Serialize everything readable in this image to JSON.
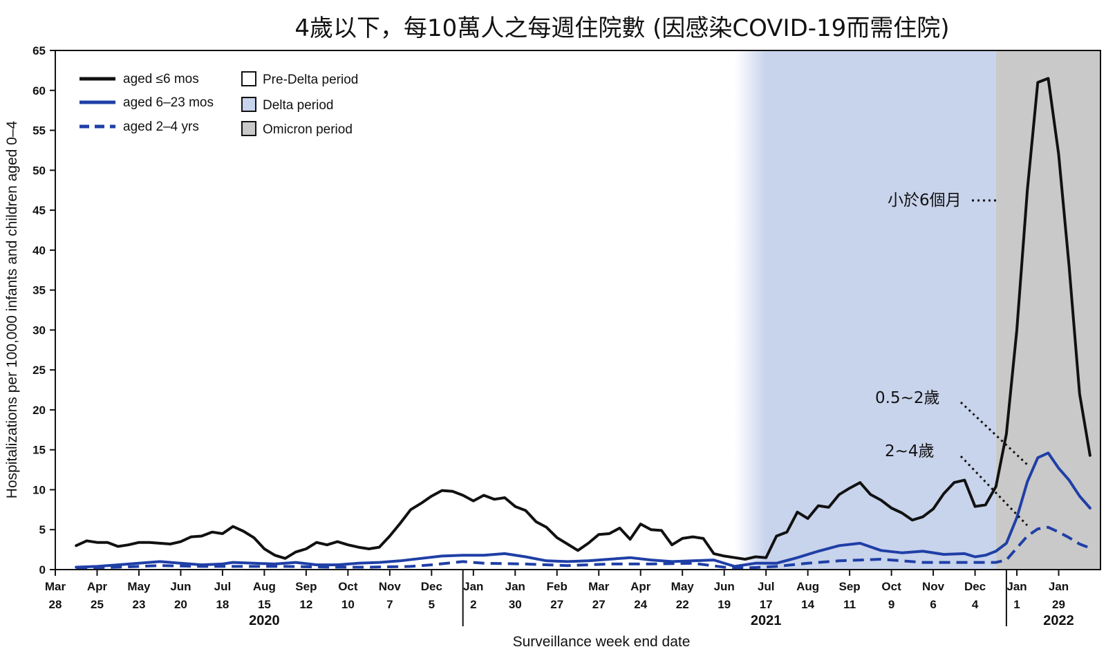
{
  "chart_data": {
    "type": "line",
    "title": "4歲以下，每10萬人之每週住院數 (因感染COVID-19而需住院)",
    "xlabel": "Surveillance week end date",
    "ylabel": "Hospitalizations per 100,000 infants and children aged 0–4",
    "ylim": [
      0,
      65
    ],
    "yticks": [
      0,
      5,
      10,
      15,
      20,
      25,
      30,
      35,
      40,
      45,
      50,
      55,
      60,
      65
    ],
    "x_start": "2020-03-28",
    "x_end": "2022-02-26",
    "xticks": [
      {
        "date": "2020-03-28",
        "month": "Mar",
        "day": "28"
      },
      {
        "date": "2020-04-25",
        "month": "Apr",
        "day": "25"
      },
      {
        "date": "2020-05-23",
        "month": "May",
        "day": "23"
      },
      {
        "date": "2020-06-20",
        "month": "Jun",
        "day": "20"
      },
      {
        "date": "2020-07-18",
        "month": "Jul",
        "day": "18"
      },
      {
        "date": "2020-08-15",
        "month": "Aug",
        "day": "15"
      },
      {
        "date": "2020-09-12",
        "month": "Sep",
        "day": "12"
      },
      {
        "date": "2020-10-10",
        "month": "Oct",
        "day": "10"
      },
      {
        "date": "2020-11-07",
        "month": "Nov",
        "day": "7"
      },
      {
        "date": "2020-12-05",
        "month": "Dec",
        "day": "5"
      },
      {
        "date": "2021-01-02",
        "month": "Jan",
        "day": "2"
      },
      {
        "date": "2021-01-30",
        "month": "Jan",
        "day": "30"
      },
      {
        "date": "2021-02-27",
        "month": "Feb",
        "day": "27"
      },
      {
        "date": "2021-03-27",
        "month": "Mar",
        "day": "27"
      },
      {
        "date": "2021-04-24",
        "month": "Apr",
        "day": "24"
      },
      {
        "date": "2021-05-22",
        "month": "May",
        "day": "22"
      },
      {
        "date": "2021-06-19",
        "month": "Jun",
        "day": "19"
      },
      {
        "date": "2021-07-17",
        "month": "Jul",
        "day": "17"
      },
      {
        "date": "2021-08-14",
        "month": "Aug",
        "day": "14"
      },
      {
        "date": "2021-09-11",
        "month": "Sep",
        "day": "11"
      },
      {
        "date": "2021-10-09",
        "month": "Oct",
        "day": "9"
      },
      {
        "date": "2021-11-06",
        "month": "Nov",
        "day": "6"
      },
      {
        "date": "2021-12-04",
        "month": "Dec",
        "day": "4"
      },
      {
        "date": "2022-01-01",
        "month": "Jan",
        "day": "1"
      },
      {
        "date": "2022-01-29",
        "month": "Jan",
        "day": "29"
      }
    ],
    "years": [
      {
        "label": "2020",
        "at": "2020-08-15"
      },
      {
        "label": "2021",
        "at": "2021-07-17"
      },
      {
        "label": "2022",
        "at": "2022-01-29"
      }
    ],
    "year_dividers": [
      "2020-12-26",
      "2021-12-25"
    ],
    "periods": [
      {
        "name": "Pre-Delta period",
        "start": "2020-03-28",
        "end": "2021-06-26",
        "color": "#ffffff"
      },
      {
        "name": "Delta period",
        "start": "2021-06-26",
        "end": "2021-12-18",
        "color": "#c8d3ec"
      },
      {
        "name": "Omicron period",
        "start": "2021-12-18",
        "end": "2022-02-26",
        "color": "#c9c9c9"
      }
    ],
    "series": [
      {
        "name": "aged ≤6 mos",
        "color": "#111111",
        "style": "solid",
        "points": [
          [
            "2020-04-11",
            3.0
          ],
          [
            "2020-04-18",
            3.6
          ],
          [
            "2020-04-25",
            3.4
          ],
          [
            "2020-05-02",
            3.4
          ],
          [
            "2020-05-09",
            2.9
          ],
          [
            "2020-05-16",
            3.1
          ],
          [
            "2020-05-23",
            3.4
          ],
          [
            "2020-05-30",
            3.4
          ],
          [
            "2020-06-06",
            3.3
          ],
          [
            "2020-06-13",
            3.2
          ],
          [
            "2020-06-20",
            3.5
          ],
          [
            "2020-06-27",
            4.1
          ],
          [
            "2020-07-04",
            4.2
          ],
          [
            "2020-07-11",
            4.7
          ],
          [
            "2020-07-18",
            4.5
          ],
          [
            "2020-07-25",
            5.4
          ],
          [
            "2020-08-01",
            4.8
          ],
          [
            "2020-08-08",
            4.0
          ],
          [
            "2020-08-15",
            2.6
          ],
          [
            "2020-08-22",
            1.8
          ],
          [
            "2020-08-29",
            1.4
          ],
          [
            "2020-09-05",
            2.2
          ],
          [
            "2020-09-12",
            2.6
          ],
          [
            "2020-09-19",
            3.4
          ],
          [
            "2020-09-26",
            3.1
          ],
          [
            "2020-10-03",
            3.5
          ],
          [
            "2020-10-10",
            3.1
          ],
          [
            "2020-10-17",
            2.8
          ],
          [
            "2020-10-24",
            2.6
          ],
          [
            "2020-10-31",
            2.8
          ],
          [
            "2020-11-07",
            4.2
          ],
          [
            "2020-11-14",
            5.8
          ],
          [
            "2020-11-21",
            7.5
          ],
          [
            "2020-11-28",
            8.3
          ],
          [
            "2020-12-05",
            9.2
          ],
          [
            "2020-12-12",
            9.9
          ],
          [
            "2020-12-19",
            9.8
          ],
          [
            "2020-12-26",
            9.3
          ],
          [
            "2021-01-02",
            8.6
          ],
          [
            "2021-01-09",
            9.3
          ],
          [
            "2021-01-16",
            8.8
          ],
          [
            "2021-01-23",
            9.0
          ],
          [
            "2021-01-30",
            7.9
          ],
          [
            "2021-02-06",
            7.4
          ],
          [
            "2021-02-13",
            6.0
          ],
          [
            "2021-02-20",
            5.3
          ],
          [
            "2021-02-27",
            4.0
          ],
          [
            "2021-03-06",
            3.2
          ],
          [
            "2021-03-13",
            2.4
          ],
          [
            "2021-03-20",
            3.3
          ],
          [
            "2021-03-27",
            4.4
          ],
          [
            "2021-04-03",
            4.5
          ],
          [
            "2021-04-10",
            5.2
          ],
          [
            "2021-04-17",
            3.8
          ],
          [
            "2021-04-24",
            5.7
          ],
          [
            "2021-05-01",
            5.0
          ],
          [
            "2021-05-08",
            4.9
          ],
          [
            "2021-05-15",
            3.1
          ],
          [
            "2021-05-22",
            3.9
          ],
          [
            "2021-05-29",
            4.1
          ],
          [
            "2021-06-05",
            3.9
          ],
          [
            "2021-06-12",
            2.0
          ],
          [
            "2021-06-19",
            1.7
          ],
          [
            "2021-06-26",
            1.5
          ],
          [
            "2021-07-03",
            1.3
          ],
          [
            "2021-07-10",
            1.6
          ],
          [
            "2021-07-17",
            1.5
          ],
          [
            "2021-07-24",
            4.2
          ],
          [
            "2021-07-31",
            4.7
          ],
          [
            "2021-08-07",
            7.2
          ],
          [
            "2021-08-14",
            6.4
          ],
          [
            "2021-08-21",
            8.0
          ],
          [
            "2021-08-28",
            7.8
          ],
          [
            "2021-09-04",
            9.4
          ],
          [
            "2021-09-11",
            10.2
          ],
          [
            "2021-09-18",
            10.9
          ],
          [
            "2021-09-25",
            9.4
          ],
          [
            "2021-10-02",
            8.7
          ],
          [
            "2021-10-09",
            7.7
          ],
          [
            "2021-10-16",
            7.1
          ],
          [
            "2021-10-23",
            6.2
          ],
          [
            "2021-10-30",
            6.6
          ],
          [
            "2021-11-06",
            7.6
          ],
          [
            "2021-11-13",
            9.5
          ],
          [
            "2021-11-20",
            10.9
          ],
          [
            "2021-11-27",
            11.2
          ],
          [
            "2021-12-04",
            7.9
          ],
          [
            "2021-12-11",
            8.1
          ],
          [
            "2021-12-18",
            10.4
          ],
          [
            "2021-12-25",
            17.0
          ],
          [
            "2022-01-01",
            30.0
          ],
          [
            "2022-01-08",
            47.5
          ],
          [
            "2022-01-15",
            61.0
          ],
          [
            "2022-01-22",
            61.5
          ],
          [
            "2022-01-29",
            52.0
          ],
          [
            "2022-02-05",
            38.0
          ],
          [
            "2022-02-12",
            22.0
          ],
          [
            "2022-02-19",
            14.3
          ]
        ]
      },
      {
        "name": "aged 6–23 mos",
        "color": "#1f3fa6",
        "style": "solid",
        "points": [
          [
            "2020-04-11",
            0.3
          ],
          [
            "2020-04-25",
            0.4
          ],
          [
            "2020-05-09",
            0.6
          ],
          [
            "2020-05-23",
            0.8
          ],
          [
            "2020-06-06",
            1.0
          ],
          [
            "2020-06-20",
            0.8
          ],
          [
            "2020-07-04",
            0.6
          ],
          [
            "2020-07-18",
            0.7
          ],
          [
            "2020-07-25",
            0.9
          ],
          [
            "2020-08-08",
            0.8
          ],
          [
            "2020-08-22",
            0.7
          ],
          [
            "2020-09-05",
            0.9
          ],
          [
            "2020-09-19",
            0.6
          ],
          [
            "2020-10-03",
            0.6
          ],
          [
            "2020-10-17",
            0.8
          ],
          [
            "2020-10-31",
            0.9
          ],
          [
            "2020-11-14",
            1.1
          ],
          [
            "2020-11-28",
            1.4
          ],
          [
            "2020-12-12",
            1.7
          ],
          [
            "2020-12-26",
            1.8
          ],
          [
            "2021-01-09",
            1.8
          ],
          [
            "2021-01-23",
            2.0
          ],
          [
            "2021-02-06",
            1.6
          ],
          [
            "2021-02-20",
            1.1
          ],
          [
            "2021-03-06",
            1.0
          ],
          [
            "2021-03-20",
            1.1
          ],
          [
            "2021-04-03",
            1.3
          ],
          [
            "2021-04-17",
            1.5
          ],
          [
            "2021-05-01",
            1.2
          ],
          [
            "2021-05-15",
            1.0
          ],
          [
            "2021-05-29",
            1.1
          ],
          [
            "2021-06-12",
            1.2
          ],
          [
            "2021-06-26",
            0.4
          ],
          [
            "2021-07-10",
            0.8
          ],
          [
            "2021-07-24",
            0.8
          ],
          [
            "2021-08-07",
            1.5
          ],
          [
            "2021-08-21",
            2.3
          ],
          [
            "2021-09-04",
            3.0
          ],
          [
            "2021-09-18",
            3.3
          ],
          [
            "2021-10-02",
            2.4
          ],
          [
            "2021-10-16",
            2.1
          ],
          [
            "2021-10-30",
            2.3
          ],
          [
            "2021-11-13",
            1.9
          ],
          [
            "2021-11-27",
            2.0
          ],
          [
            "2021-12-04",
            1.6
          ],
          [
            "2021-12-11",
            1.8
          ],
          [
            "2021-12-18",
            2.3
          ],
          [
            "2021-12-25",
            3.3
          ],
          [
            "2022-01-01",
            6.5
          ],
          [
            "2022-01-08",
            11.0
          ],
          [
            "2022-01-15",
            14.0
          ],
          [
            "2022-01-22",
            14.6
          ],
          [
            "2022-01-29",
            12.7
          ],
          [
            "2022-02-05",
            11.2
          ],
          [
            "2022-02-12",
            9.2
          ],
          [
            "2022-02-19",
            7.7
          ]
        ]
      },
      {
        "name": "aged 2–4 yrs",
        "color": "#1f3fa6",
        "style": "dashed",
        "points": [
          [
            "2020-04-11",
            0.2
          ],
          [
            "2020-05-09",
            0.3
          ],
          [
            "2020-06-06",
            0.5
          ],
          [
            "2020-07-04",
            0.4
          ],
          [
            "2020-08-01",
            0.4
          ],
          [
            "2020-08-29",
            0.4
          ],
          [
            "2020-09-26",
            0.3
          ],
          [
            "2020-10-24",
            0.3
          ],
          [
            "2020-11-21",
            0.4
          ],
          [
            "2020-12-05",
            0.6
          ],
          [
            "2020-12-26",
            1.0
          ],
          [
            "2021-01-09",
            0.8
          ],
          [
            "2021-02-06",
            0.7
          ],
          [
            "2021-03-06",
            0.5
          ],
          [
            "2021-04-03",
            0.7
          ],
          [
            "2021-05-01",
            0.7
          ],
          [
            "2021-05-29",
            0.8
          ],
          [
            "2021-06-19",
            0.3
          ],
          [
            "2021-07-03",
            0.2
          ],
          [
            "2021-07-24",
            0.4
          ],
          [
            "2021-08-14",
            0.8
          ],
          [
            "2021-09-04",
            1.1
          ],
          [
            "2021-10-02",
            1.3
          ],
          [
            "2021-10-30",
            0.9
          ],
          [
            "2021-11-20",
            0.9
          ],
          [
            "2021-12-04",
            0.9
          ],
          [
            "2021-12-18",
            0.9
          ],
          [
            "2021-12-25",
            1.2
          ],
          [
            "2022-01-01",
            2.7
          ],
          [
            "2022-01-08",
            4.2
          ],
          [
            "2022-01-15",
            5.1
          ],
          [
            "2022-01-22",
            5.3
          ],
          [
            "2022-01-29",
            4.7
          ],
          [
            "2022-02-05",
            4.0
          ],
          [
            "2022-02-12",
            3.2
          ],
          [
            "2022-02-19",
            2.7
          ]
        ]
      }
    ],
    "annotations": [
      {
        "text": "小於6個月",
        "series": "aged ≤6 mos"
      },
      {
        "text": "0.5~2歲",
        "series": "aged 6–23 mos"
      },
      {
        "text": "2~4歲",
        "series": "aged 2–4 yrs"
      }
    ],
    "legend_position": "top-left",
    "grid": false
  }
}
